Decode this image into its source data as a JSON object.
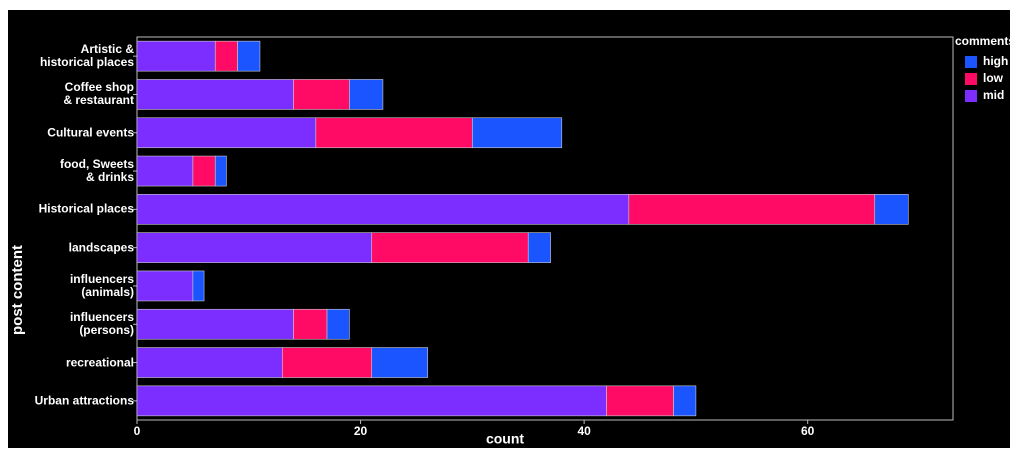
{
  "chart_data": {
    "type": "stacked-bar-horizontal",
    "x_label": "count",
    "y_label": "post content",
    "legend_title": "comments",
    "categories": [
      "Artistic &\nhistorical places",
      "Coffee shop\n& restaurant",
      "Cultural events",
      "food, Sweets\n& drinks",
      "Historical places",
      "landscapes",
      "influencers\n(animals)",
      "influencers\n(persons)",
      "recreational",
      "Urban attractions"
    ],
    "series": [
      {
        "name": "high",
        "color": "#1a55ff",
        "values": [
          2,
          3,
          8,
          1,
          3,
          2,
          1,
          2,
          5,
          2
        ]
      },
      {
        "name": "low",
        "color": "#ff0a64",
        "values": [
          2,
          5,
          14,
          2,
          22,
          14,
          0,
          3,
          8,
          6
        ]
      },
      {
        "name": "mid",
        "color": "#7b2eff",
        "values": [
          7,
          14,
          16,
          5,
          44,
          21,
          5,
          14,
          13,
          42
        ]
      }
    ],
    "xlim": [
      0,
      73
    ],
    "xticks": [
      0,
      20,
      40,
      60
    ],
    "grid": false,
    "legend_position": "right"
  }
}
